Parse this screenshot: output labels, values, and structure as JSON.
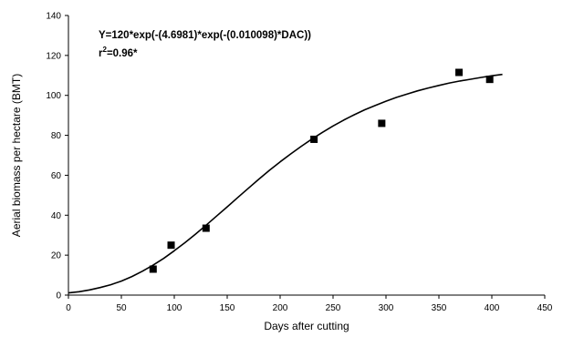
{
  "chart_data": {
    "type": "scatter",
    "xlabel": "Days after cutting",
    "ylabel": "Aerial biomass per hectare (BMT)",
    "xlim": [
      0,
      450
    ],
    "ylim": [
      0,
      140
    ],
    "x_ticks": [
      0,
      50,
      100,
      150,
      200,
      250,
      300,
      350,
      400,
      450
    ],
    "y_ticks": [
      0,
      20,
      40,
      60,
      80,
      100,
      120,
      140
    ],
    "grid": false,
    "annotation": {
      "equation": "Y=120*exp(-(4.6981)*exp(-(0.010098)*DAC))",
      "r2_prefix": "r",
      "r2_sup": "2",
      "r2_value": "=0.96*"
    },
    "series": [
      {
        "style": "markers",
        "marker": "square",
        "color": "#000000",
        "x": [
          80,
          97,
          130,
          232,
          296,
          369,
          398
        ],
        "y": [
          13,
          25,
          33.5,
          78,
          86,
          111.5,
          108
        ]
      },
      {
        "style": "line",
        "color": "#000000",
        "x": [
          0,
          10,
          20,
          30,
          40,
          50,
          60,
          70,
          80,
          90,
          100,
          110,
          120,
          130,
          140,
          150,
          160,
          170,
          180,
          190,
          200,
          210,
          220,
          230,
          240,
          250,
          260,
          270,
          280,
          290,
          300,
          310,
          320,
          330,
          340,
          350,
          360,
          370,
          380,
          390,
          400,
          410
        ],
        "y": [
          1.1,
          1.7,
          2.6,
          3.8,
          5.2,
          7.0,
          9.3,
          12.0,
          15.0,
          18.4,
          22.2,
          26.2,
          30.5,
          35.0,
          39.6,
          44.2,
          48.9,
          53.5,
          58.1,
          62.5,
          66.7,
          70.7,
          74.5,
          78.1,
          81.5,
          84.7,
          87.6,
          90.3,
          92.8,
          95.0,
          97.1,
          99.0,
          100.7,
          102.3,
          103.7,
          105.0,
          106.2,
          107.2,
          108.1,
          109.0,
          109.8,
          110.5
        ]
      }
    ]
  }
}
